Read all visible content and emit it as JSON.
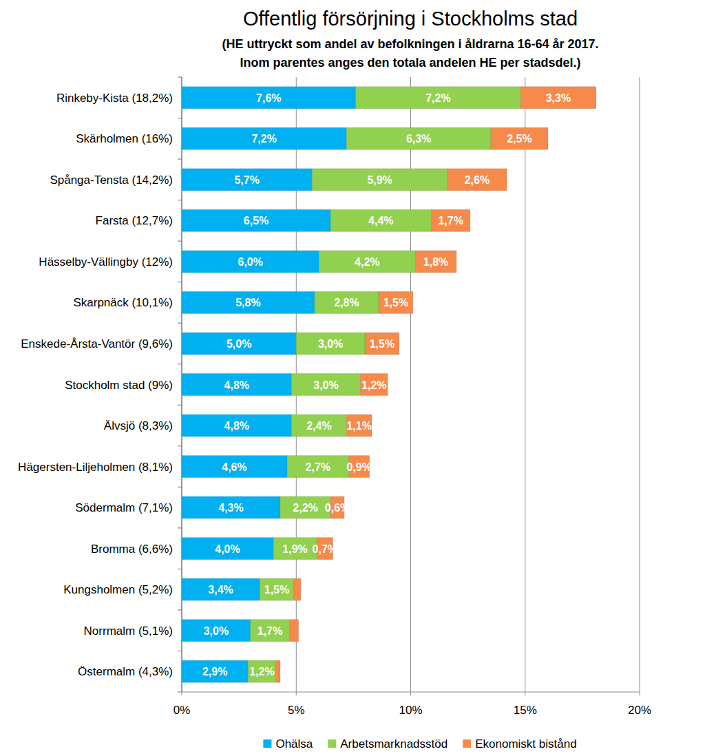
{
  "chart_data": {
    "type": "bar",
    "orientation": "horizontal",
    "stacked": true,
    "data_labels": true,
    "grid": true,
    "legend": "bottom",
    "title": "Offentlig försörjning i Stockholms stad",
    "subtitle": [
      "(HE uttryckt som andel av befolkningen i åldrarna 16-64 år 2017.",
      "Inom parentes anges den totala andelen HE per stadsdel.)"
    ],
    "categories": [
      "Rinkeby-Kista (18,2%)",
      "Skärholmen (16%)",
      "Spånga-Tensta (14,2%)",
      "Farsta (12,7%)",
      "Hässelby-Vällingby (12%)",
      "Skarpnäck (10,1%)",
      "Enskede-Årsta-Vantör (9,6%)",
      "Stockholm stad (9%)",
      "Älvsjö (8,3%)",
      "Hägersten-Liljeholmen (8,1%)",
      "Södermalm (7,1%)",
      "Bromma (6,6%)",
      "Kungsholmen (5,2%)",
      "Norrmalm (5,1%)",
      "Östermalm (4,3%)"
    ],
    "series": [
      {
        "name": "Ohälsa",
        "color": "#00b0f0",
        "values": [
          7.6,
          7.2,
          5.7,
          6.5,
          6.0,
          5.8,
          5.0,
          4.8,
          4.8,
          4.6,
          4.3,
          4.0,
          3.4,
          3.0,
          2.9
        ],
        "value_labels": [
          "7,6%",
          "7,2%",
          "5,7%",
          "6,5%",
          "6,0%",
          "5,8%",
          "5,0%",
          "4,8%",
          "4,8%",
          "4,6%",
          "4,3%",
          "4,0%",
          "3,4%",
          "3,0%",
          "2,9%"
        ]
      },
      {
        "name": "Arbetsmarknadsstöd",
        "color": "#92d050",
        "values": [
          7.2,
          6.3,
          5.9,
          4.4,
          4.2,
          2.8,
          3.0,
          3.0,
          2.4,
          2.7,
          2.2,
          1.9,
          1.5,
          1.7,
          1.2
        ],
        "value_labels": [
          "7,2%",
          "6,3%",
          "5,9%",
          "4,4%",
          "4,2%",
          "2,8%",
          "3,0%",
          "3,0%",
          "2,4%",
          "2,7%",
          "2,2%",
          "1,9%",
          "1,5%",
          "1,7%",
          "1,2%"
        ]
      },
      {
        "name": "Ekonomiskt bistånd",
        "color": "#f58a4b",
        "values": [
          3.3,
          2.5,
          2.6,
          1.7,
          1.8,
          1.5,
          1.5,
          1.2,
          1.1,
          0.9,
          0.6,
          0.7,
          0.3,
          0.4,
          0.2
        ],
        "value_labels": [
          "3,3%",
          "2,5%",
          "2,6%",
          "1,7%",
          "1,8%",
          "1,5%",
          "1,5%",
          "1,2%",
          "1,1%",
          "0,9%",
          "0,6%",
          "0,7%",
          null,
          null,
          null
        ]
      }
    ],
    "xlim": [
      0,
      20
    ],
    "xticks": [
      {
        "value": 0,
        "label": "0%"
      },
      {
        "value": 5,
        "label": "5%"
      },
      {
        "value": 10,
        "label": "10%"
      },
      {
        "value": 15,
        "label": "15%"
      },
      {
        "value": 20,
        "label": "20%"
      }
    ]
  }
}
